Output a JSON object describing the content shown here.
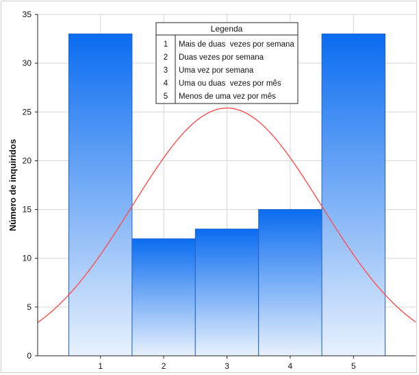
{
  "chart_data": {
    "type": "bar",
    "categories": [
      "1",
      "2",
      "3",
      "4",
      "5"
    ],
    "values": [
      33,
      12,
      13,
      15,
      33
    ],
    "ylabel": "Número de inquiridos",
    "xlabel": "",
    "ylim": [
      0,
      35
    ],
    "y_ticks": [
      "0",
      "5",
      "10",
      "15",
      "20",
      "25",
      "30",
      "35"
    ],
    "grid": true,
    "bar_colors": {
      "top": "#0a6cf0",
      "bottom": "#e8f1fd",
      "stroke": "#1f63c8"
    },
    "curve": {
      "type": "normal-fit",
      "peak_x": 3,
      "peak_y": 25.4,
      "color": "#ff4d4d"
    },
    "legend": {
      "placement": "top-center",
      "title": "Legenda",
      "entries": [
        {
          "code": "1",
          "label": "Mais de duas  vezes por semana"
        },
        {
          "code": "2",
          "label": "Duas vezes por semana"
        },
        {
          "code": "3",
          "label": "Uma vez por semana"
        },
        {
          "code": "4",
          "label": "Uma ou duas  vezes por mês"
        },
        {
          "code": "5",
          "label": "Menos de uma vez por mês"
        }
      ]
    }
  }
}
